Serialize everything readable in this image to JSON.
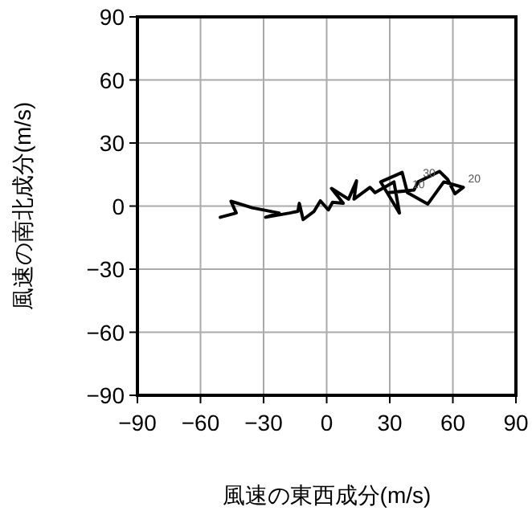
{
  "chart_data": {
    "type": "line",
    "xlabel": "風速の東西成分(m/s)",
    "ylabel": "風速の南北成分(m/s)",
    "xlim": [
      -90,
      90
    ],
    "ylim": [
      -90,
      90
    ],
    "xticks": [
      {
        "value": -90,
        "label": "−90"
      },
      {
        "value": -60,
        "label": "−60"
      },
      {
        "value": -30,
        "label": "−30"
      },
      0,
      30,
      60,
      90
    ],
    "yticks": [
      {
        "value": -90,
        "label": "−90"
      },
      {
        "value": -60,
        "label": "−60"
      },
      {
        "value": -30,
        "label": "−30"
      },
      0,
      30,
      60,
      90
    ],
    "grid": true,
    "marker": "none",
    "line_style": "solid",
    "series": [
      {
        "color": "#000000",
        "x": [
          -50.6,
          -43,
          -45.5,
          -35.4,
          -22.6,
          -29,
          -17.6,
          -13.7,
          -13,
          -11.2,
          -6,
          -3,
          0.8,
          2.8,
          7.9,
          2.3,
          10.4,
          14.2,
          13,
          20.6,
          23,
          32,
          34.6,
          25.7,
          35.9,
          38.4,
          48.1,
          55.7,
          65,
          61,
          57.5,
          53.7,
          43.5,
          41.5,
          29.5
        ],
        "values": [
          -5.3,
          -3.3,
          2.3,
          -0.8,
          -3.3,
          -5.3,
          -3.3,
          -2.5,
          1.3,
          -6.4,
          -2.5,
          2.5,
          -1.8,
          1.8,
          1.3,
          8.4,
          3.3,
          12,
          3.3,
          8.9,
          6.4,
          11.5,
          -3.3,
          11.5,
          16,
          6.4,
          1,
          11.5,
          8.9,
          5.9,
          12.7,
          16.5,
          11.5,
          7.6,
          6.4
        ]
      }
    ],
    "annotations": [
      {
        "text": "30",
        "x": 43.5,
        "y": 11.5
      },
      {
        "text": "20",
        "x": 65,
        "y": 8.9
      },
      {
        "text": "10",
        "x": 38.4,
        "y": 6.4
      }
    ]
  }
}
